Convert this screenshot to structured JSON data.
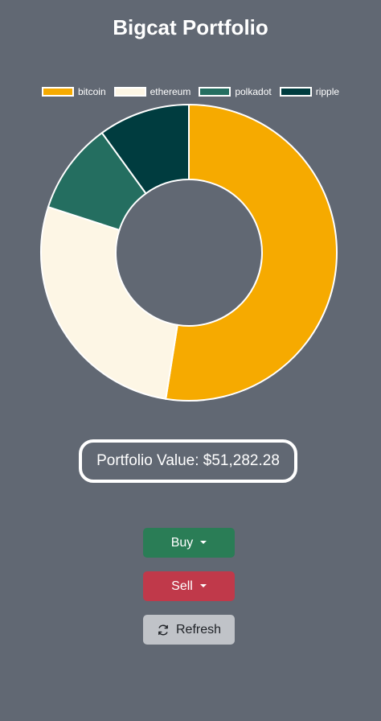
{
  "header": {
    "title": "Bigcat Portfolio"
  },
  "colors": {
    "background": "#616873",
    "buy": "#2a7d56",
    "sell": "#c0394a",
    "refresh": "#c0c3c8"
  },
  "chart_data": {
    "type": "pie",
    "variant": "doughnut",
    "title": "",
    "legend_position": "top",
    "categories": [
      "bitcoin",
      "ethereum",
      "polkadot",
      "ripple"
    ],
    "values": [
      52.5,
      27.5,
      10.0,
      10.0
    ],
    "value_unit": "percent of portfolio (estimated)",
    "colors": [
      "#f6aa00",
      "#fdf6e5",
      "#246e60",
      "#003c3f"
    ]
  },
  "portfolio": {
    "value_text": "Portfolio Value: $51,282.28"
  },
  "actions": {
    "buy_label": "Buy",
    "sell_label": "Sell",
    "refresh_label": "Refresh",
    "refresh_icon": "refresh-icon",
    "dropdown_icon": "caret-down-icon"
  }
}
